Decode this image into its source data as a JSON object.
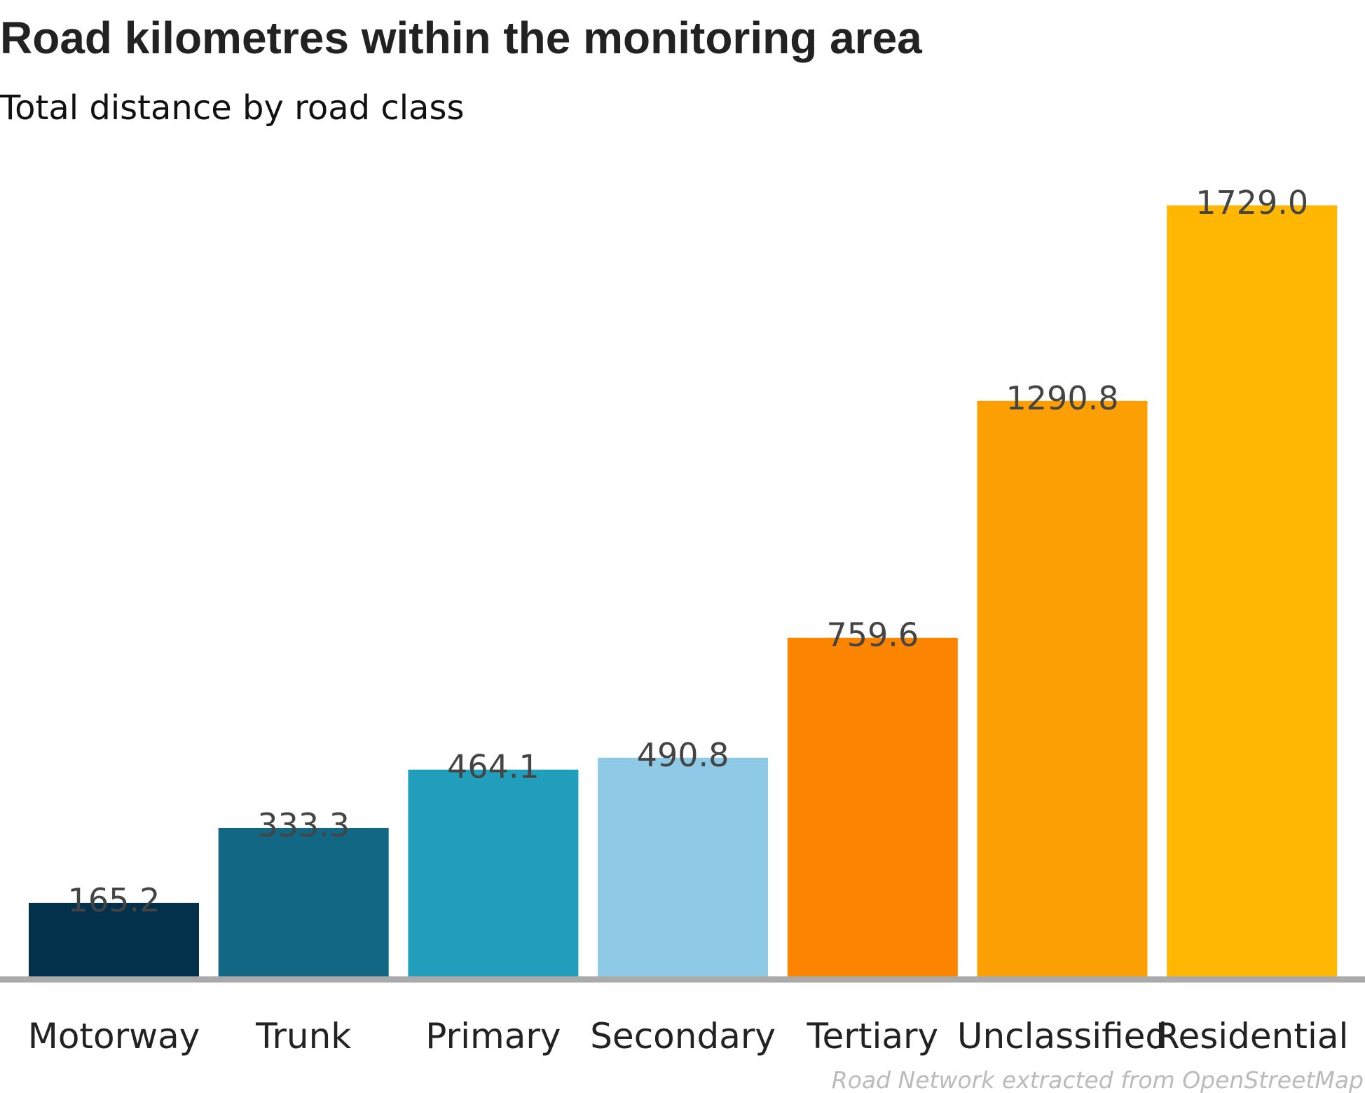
{
  "chart_data": {
    "type": "bar",
    "title": "Road kilometres within the monitoring area",
    "subtitle": "Total distance by road class",
    "xlabel": "",
    "ylabel": "",
    "ylim": [
      0,
      1729.0
    ],
    "grid": false,
    "categories": [
      "Motorway",
      "Trunk",
      "Primary",
      "Secondary",
      "Tertiary",
      "Unclassified",
      "Residential"
    ],
    "values": [
      165.2,
      333.3,
      464.1,
      490.8,
      759.6,
      1290.8,
      1729.0
    ],
    "value_labels": [
      "165.2",
      "333.3",
      "464.1",
      "490.8",
      "759.6",
      "1290.8",
      "1729.0"
    ],
    "colors": [
      "#03314b",
      "#126884",
      "#219ebc",
      "#8ecae6",
      "#fb8500",
      "#fb9f04",
      "#ffb703"
    ],
    "axis_color": "#aaaaaa",
    "source": "Road Network extracted from OpenStreetMap"
  }
}
